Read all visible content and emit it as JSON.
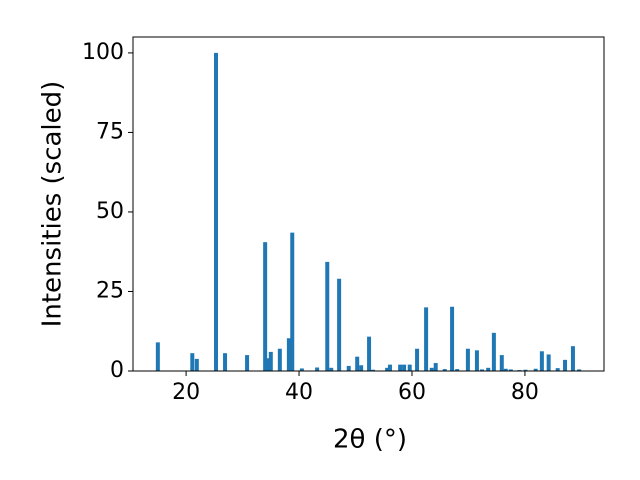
{
  "chart_data": {
    "type": "bar",
    "x_label": "2θ (°)",
    "y_label": "Intensities (scaled)",
    "color": "#1f77b4",
    "x": [
      15.0,
      21.1,
      21.9,
      25.3,
      26.9,
      30.8,
      34.0,
      34.4,
      35.0,
      36.6,
      38.2,
      38.8,
      40.5,
      43.2,
      45.0,
      45.7,
      47.1,
      48.8,
      50.3,
      51.0,
      52.4,
      53.1,
      55.6,
      56.1,
      57.9,
      58.6,
      59.6,
      60.9,
      62.5,
      63.5,
      64.2,
      65.8,
      67.1,
      68.0,
      69.9,
      71.5,
      72.4,
      73.5,
      74.5,
      75.9,
      76.6,
      77.5,
      79.0,
      80.1,
      81.9,
      83.0,
      84.2,
      85.8,
      87.1,
      88.5,
      89.6
    ],
    "values": [
      9.0,
      5.6,
      3.8,
      100,
      5.6,
      5.0,
      40.5,
      4.0,
      6.0,
      7.0,
      10.3,
      43.5,
      0.8,
      1.1,
      34.3,
      1.0,
      29.0,
      1.6,
      4.5,
      1.8,
      10.8,
      0.4,
      1.0,
      2.0,
      2.0,
      2.0,
      2.0,
      7.0,
      20.0,
      1.0,
      2.5,
      0.6,
      20.2,
      0.6,
      7.0,
      6.5,
      0.5,
      1.0,
      12.0,
      5.0,
      0.7,
      0.5,
      0.3,
      0.4,
      0.7,
      6.2,
      5.2,
      0.9,
      3.5,
      7.8,
      0.5
    ],
    "xlim": [
      10.6,
      94.0
    ],
    "ylim": [
      0,
      105
    ],
    "xticks": [
      20,
      40,
      60,
      80
    ],
    "yticks": [
      0,
      25,
      50,
      75,
      100
    ]
  }
}
